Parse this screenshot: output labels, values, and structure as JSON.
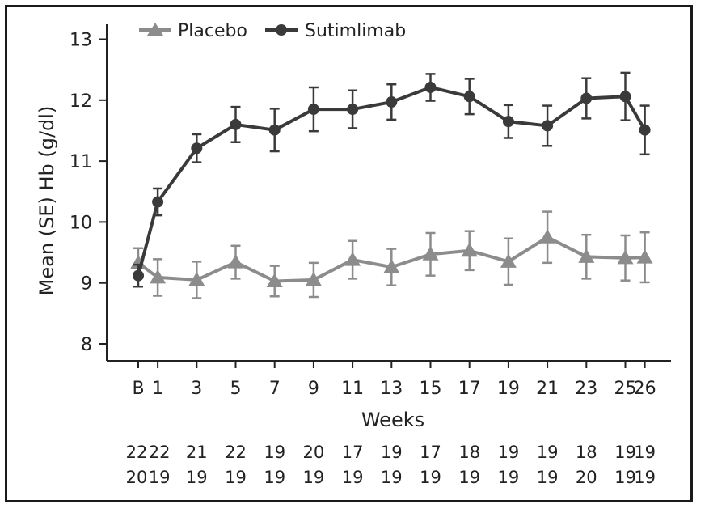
{
  "chart_data": {
    "type": "line",
    "title": "",
    "xlabel": "Weeks",
    "ylabel": "Mean (SE) Hb (g/dl)",
    "ylim": [
      8,
      13
    ],
    "yticks": [
      "8",
      "9",
      "10",
      "11",
      "12",
      "13"
    ],
    "grid": false,
    "legend_position": "top-left",
    "x_tick_labels": [
      "B",
      "1",
      "3",
      "5",
      "7",
      "9",
      "11",
      "13",
      "15",
      "17",
      "19",
      "21",
      "23",
      "25",
      "26"
    ],
    "x": [
      0,
      1,
      3,
      5,
      7,
      9,
      11,
      13,
      15,
      17,
      19,
      21,
      23,
      25,
      26
    ],
    "series": [
      {
        "name": "Sutimlimab",
        "color": "#3a3a3a",
        "marker": "circle",
        "values": [
          9.12,
          10.33,
          11.21,
          11.6,
          11.51,
          11.85,
          11.85,
          11.97,
          12.21,
          12.06,
          11.65,
          11.58,
          12.03,
          12.06,
          11.51
        ],
        "se": [
          0.18,
          0.22,
          0.23,
          0.29,
          0.35,
          0.36,
          0.31,
          0.29,
          0.22,
          0.29,
          0.27,
          0.33,
          0.33,
          0.39,
          0.4
        ],
        "n_at_risk": [
          "22",
          "22",
          "21",
          "22",
          "19",
          "20",
          "17",
          "19",
          "17",
          "18",
          "19",
          "19",
          "18",
          "19",
          "19"
        ],
        "n_color": "#3a3a3a"
      },
      {
        "name": "Placebo",
        "color": "#8c8c8c",
        "marker": "triangle",
        "values": [
          9.33,
          9.09,
          9.05,
          9.34,
          9.03,
          9.05,
          9.38,
          9.26,
          9.47,
          9.53,
          9.35,
          9.75,
          9.43,
          9.41,
          9.42
        ],
        "se": [
          0.24,
          0.3,
          0.3,
          0.27,
          0.25,
          0.28,
          0.31,
          0.3,
          0.35,
          0.32,
          0.38,
          0.42,
          0.36,
          0.37,
          0.41
        ],
        "n_at_risk": [
          "20",
          "19",
          "19",
          "19",
          "19",
          "19",
          "19",
          "19",
          "19",
          "19",
          "19",
          "19",
          "20",
          "19",
          "19"
        ],
        "n_color": "#8c8c8c"
      }
    ]
  }
}
